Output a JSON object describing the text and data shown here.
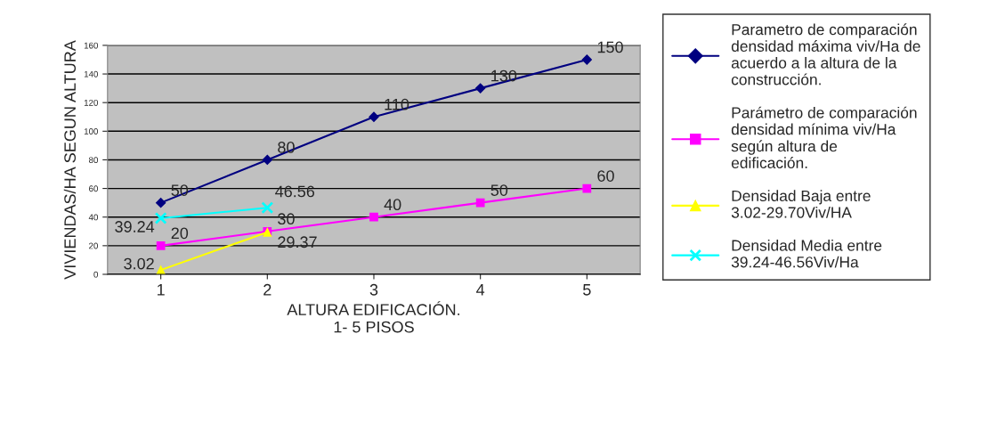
{
  "chart_data": {
    "type": "line",
    "xlabel": "ALTURA EDIFICACIÓN.\n1- 5 PISOS",
    "ylabel": "VIVIENDAS/HA SEGUN ALTURA",
    "categories": [
      "1",
      "2",
      "3",
      "4",
      "5"
    ],
    "series": [
      {
        "name": "Parametro de comparación densidad máxima viv/Ha de acuerdo a la altura de la construcción.",
        "color": "#000080",
        "marker": "diamond",
        "values": [
          50,
          80,
          110,
          130,
          150
        ]
      },
      {
        "name": "Parámetro de comparación densidad mínima viv/Ha según altura de edificación.",
        "color": "#ff00ff",
        "marker": "square",
        "values": [
          20,
          30,
          40,
          50,
          60
        ]
      },
      {
        "name": "Densidad Baja entre 3.02-29.70Viv/HA",
        "color": "#ffff00",
        "marker": "triangle",
        "values": [
          3.02,
          29.37,
          null,
          null,
          null
        ]
      },
      {
        "name": "Densidad Media entre 39.24-46.56Viv/Ha",
        "color": "#00ffff",
        "marker": "cross",
        "values": [
          39.24,
          46.56,
          null,
          null,
          null
        ]
      }
    ],
    "ylim": [
      0,
      160
    ],
    "yticks": [
      0,
      20,
      40,
      60,
      80,
      100,
      120,
      140,
      160
    ],
    "grid": "y",
    "legend": "right",
    "data_labels": true
  }
}
